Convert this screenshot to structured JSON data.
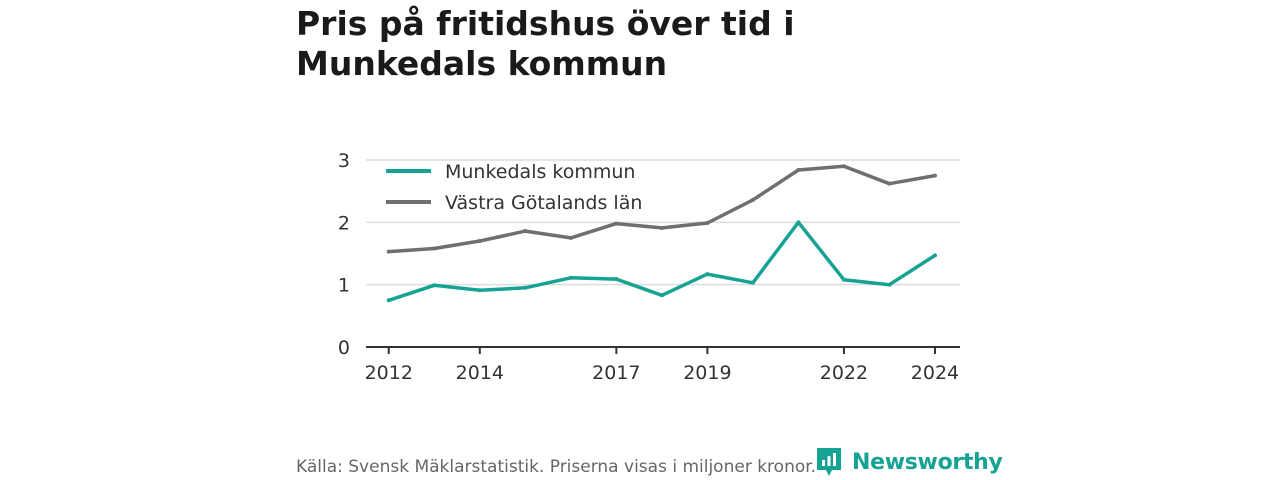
{
  "title": "Pris på fritidshus över tid i Munkedals kommun",
  "source": "Källa: Svensk Mäklarstatistik. Priserna visas i miljoner kronor.",
  "brand": {
    "name": "Newsworthy",
    "icon": "newsworthy-logo-icon",
    "color": "#16a394"
  },
  "colors": {
    "grid": "#dcdcdc",
    "axis": "#333333",
    "text": "#333333"
  },
  "chart_data": {
    "type": "line",
    "title": "Pris på fritidshus över tid i Munkedals kommun",
    "x": [
      2012,
      2013,
      2014,
      2015,
      2016,
      2017,
      2018,
      2019,
      2020,
      2021,
      2022,
      2023,
      2024
    ],
    "x_ticks": [
      "2012",
      "2014",
      "2017",
      "2019",
      "2022",
      "2024"
    ],
    "y_ticks": [
      "0",
      "1",
      "2",
      "3"
    ],
    "ylim": [
      0,
      3
    ],
    "grid": true,
    "legend": "top-left",
    "series": [
      {
        "name": "Munkedals kommun",
        "color": "#16a394",
        "values": [
          0.75,
          0.99,
          0.91,
          0.95,
          1.11,
          1.09,
          0.83,
          1.17,
          1.03,
          2.0,
          1.08,
          1.0,
          1.47
        ]
      },
      {
        "name": "Västra Götalands län",
        "color": "#6e6e73",
        "values": [
          1.53,
          1.58,
          1.7,
          1.86,
          1.75,
          1.98,
          1.91,
          1.99,
          2.36,
          2.84,
          2.9,
          2.62,
          2.75
        ]
      }
    ]
  }
}
